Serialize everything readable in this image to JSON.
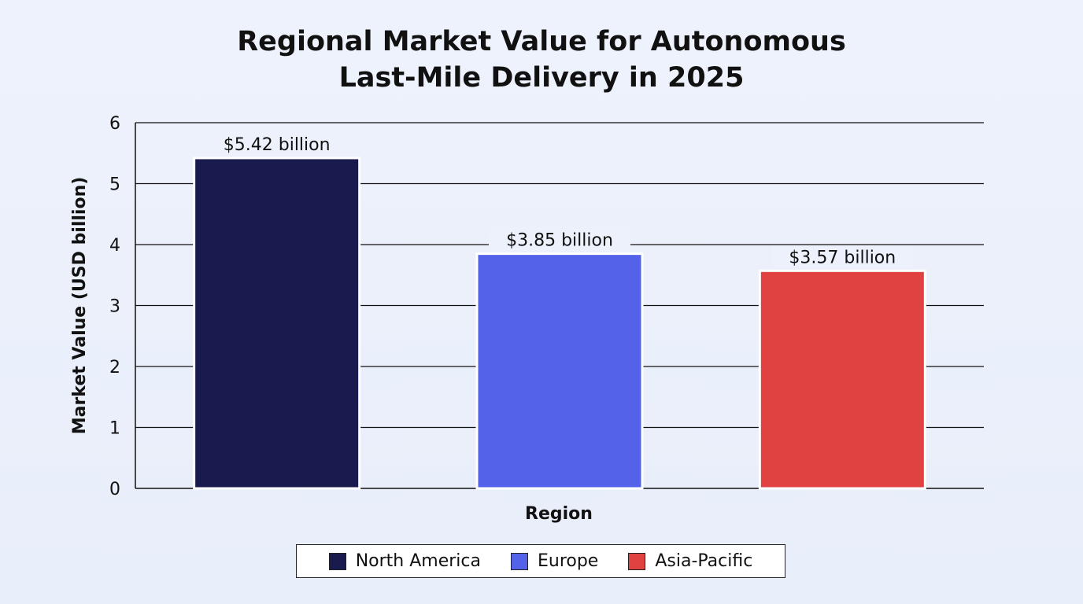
{
  "chart_data": {
    "type": "bar",
    "title": [
      "Regional Market Value for Autonomous",
      "Last-Mile Delivery in 2025"
    ],
    "xlabel": "Region",
    "ylabel": "Market Value (USD billion)",
    "categories": [
      "North America",
      "Europe",
      "Asia-Pacific"
    ],
    "values": [
      5.42,
      3.85,
      3.57
    ],
    "data_labels": [
      "$5.42 billion",
      "$3.85 billion",
      "$3.57 billion"
    ],
    "colors": [
      "#191a4d",
      "#5462ea",
      "#e04242"
    ],
    "ylim": [
      0,
      6
    ],
    "yticks": [
      0,
      1,
      2,
      3,
      4,
      5,
      6
    ],
    "grid": true,
    "legend": {
      "placement": "bottom",
      "entries": [
        "North America",
        "Europe",
        "Asia-Pacific"
      ]
    }
  }
}
